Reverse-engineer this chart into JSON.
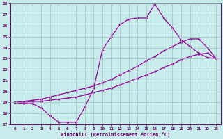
{
  "xlabel": "Windchill (Refroidissement éolien,°C)",
  "xlim": [
    -0.5,
    23.5
  ],
  "ylim": [
    17,
    28
  ],
  "yticks": [
    17,
    18,
    19,
    20,
    21,
    22,
    23,
    24,
    25,
    26,
    27,
    28
  ],
  "xticks": [
    0,
    1,
    2,
    3,
    4,
    5,
    6,
    7,
    8,
    9,
    10,
    11,
    12,
    13,
    14,
    15,
    16,
    17,
    18,
    19,
    20,
    21,
    22,
    23
  ],
  "background_color": "#c8ecec",
  "grid_color": "#a0c0c0",
  "line_color": "#990099",
  "line1_x": [
    0,
    1,
    2,
    3,
    4,
    5,
    6,
    7,
    8,
    9,
    10,
    11,
    12,
    13,
    14,
    15,
    16,
    17,
    18,
    19,
    20,
    21,
    22,
    23
  ],
  "line1_y": [
    19.0,
    18.9,
    18.9,
    18.5,
    17.8,
    17.2,
    17.2,
    17.2,
    18.6,
    20.3,
    23.8,
    25.0,
    26.1,
    26.6,
    26.7,
    26.7,
    28.0,
    26.7,
    25.8,
    24.7,
    24.1,
    23.5,
    23.1,
    23.0
  ],
  "line2_x": [
    0,
    1,
    2,
    3,
    4,
    5,
    6,
    7,
    8,
    9,
    10,
    11,
    12,
    13,
    14,
    15,
    16,
    17,
    18,
    19,
    20,
    21,
    22,
    23
  ],
  "line2_y": [
    19.0,
    19.1,
    19.2,
    19.3,
    19.5,
    19.7,
    19.9,
    20.1,
    20.3,
    20.5,
    20.8,
    21.1,
    21.5,
    21.9,
    22.3,
    22.8,
    23.2,
    23.7,
    24.1,
    24.5,
    24.8,
    24.8,
    24.0,
    23.0
  ],
  "line3_x": [
    0,
    1,
    2,
    3,
    4,
    5,
    6,
    7,
    8,
    9,
    10,
    11,
    12,
    13,
    14,
    15,
    16,
    17,
    18,
    19,
    20,
    21,
    22,
    23
  ],
  "line3_y": [
    19.0,
    19.0,
    19.1,
    19.1,
    19.2,
    19.3,
    19.4,
    19.5,
    19.7,
    19.9,
    20.1,
    20.3,
    20.6,
    20.9,
    21.2,
    21.5,
    21.8,
    22.2,
    22.5,
    22.9,
    23.2,
    23.4,
    23.5,
    23.0
  ]
}
